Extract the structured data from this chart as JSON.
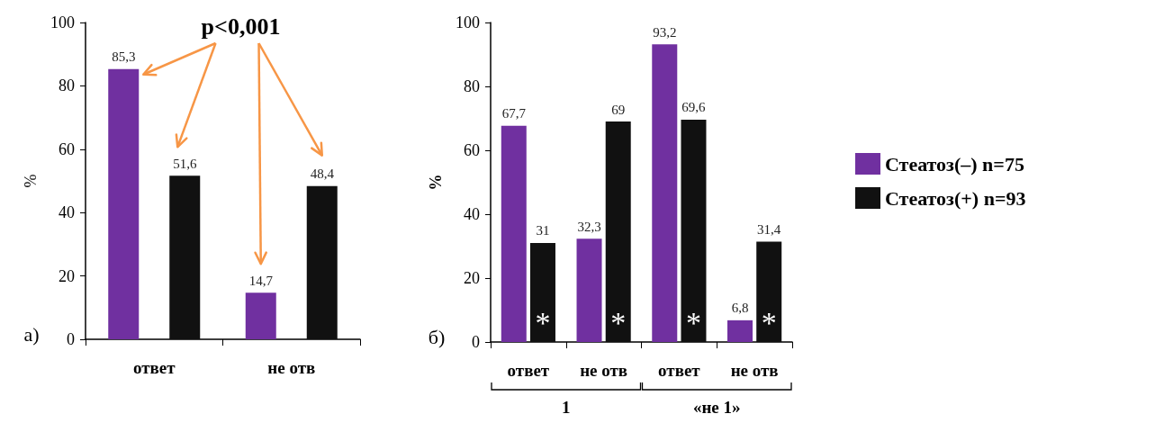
{
  "chart_data": [
    {
      "type": "bar",
      "ylabel": "%",
      "categories": [
        "ответ",
        "не отв"
      ],
      "series": [
        {
          "color": "#7030a0",
          "values": [
            85.3,
            14.7
          ],
          "value_labels": [
            "85,3",
            "14,7"
          ]
        },
        {
          "color": "#111111",
          "values": [
            51.6,
            48.4
          ],
          "value_labels": [
            "51,6",
            "48,4"
          ]
        }
      ],
      "ylim": [
        0,
        100
      ],
      "yticks": [
        0,
        20,
        40,
        60,
        80,
        100
      ],
      "grid": false,
      "legend": false,
      "annotations": [
        "а)",
        "p<0,001"
      ]
    },
    {
      "type": "bar",
      "ylabel": "%",
      "categories": [
        "ответ",
        "не отв",
        "ответ",
        "не отв"
      ],
      "series": [
        {
          "name": "Стеатоз(–) n=75",
          "color": "#7030a0",
          "values": [
            67.7,
            32.3,
            93.2,
            6.8
          ],
          "value_labels": [
            "67,7",
            "32,3",
            "93,2",
            "6,8"
          ]
        },
        {
          "name": "Стеатоз(+) n=93",
          "color": "#111111",
          "values": [
            31,
            69,
            69.6,
            31.4
          ],
          "value_labels": [
            "31",
            "69",
            "69,6",
            "31,4"
          ]
        }
      ],
      "ylim": [
        0,
        100
      ],
      "yticks": [
        0,
        20,
        40,
        60,
        80,
        100
      ],
      "grid": false,
      "legend": "right",
      "annotations": [
        "б)",
        "*",
        "*",
        "*",
        "*",
        "1",
        "«не 1»"
      ]
    }
  ]
}
